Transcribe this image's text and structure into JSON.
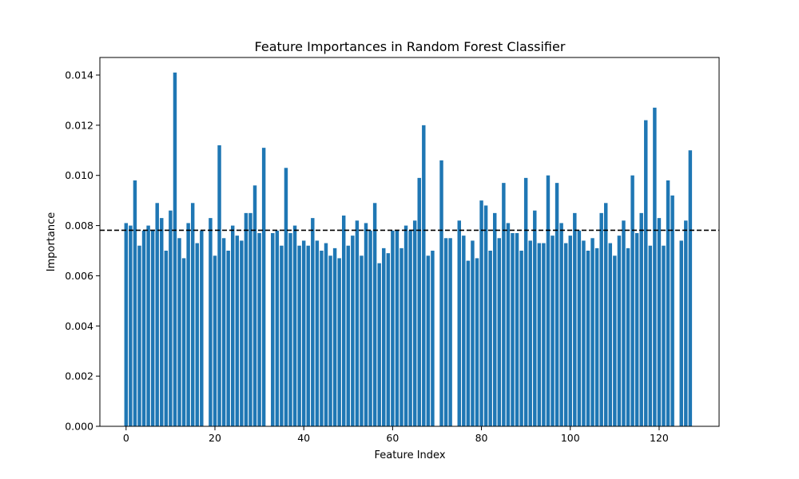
{
  "chart_data": {
    "type": "bar",
    "title": "Feature Importances in Random Forest Classifier",
    "xlabel": "Feature Index",
    "ylabel": "Importance",
    "xlim": [
      -5.9,
      133.5
    ],
    "ylim": [
      0,
      0.0147
    ],
    "xticks": [
      0,
      20,
      40,
      60,
      80,
      100,
      120
    ],
    "xtick_labels": [
      "0",
      "20",
      "40",
      "60",
      "80",
      "100",
      "120"
    ],
    "yticks": [
      0,
      0.002,
      0.004,
      0.006,
      0.008,
      0.01,
      0.012,
      0.014
    ],
    "ytick_labels": [
      "0.000",
      "0.002",
      "0.004",
      "0.006",
      "0.008",
      "0.010",
      "0.012",
      "0.014"
    ],
    "bar_color": "#1f77b4",
    "mean_line": {
      "value": 0.0078125,
      "color": "#000000",
      "style": "dashed"
    },
    "grid": false,
    "categories": [
      0,
      1,
      2,
      3,
      4,
      5,
      6,
      7,
      8,
      9,
      10,
      11,
      12,
      13,
      14,
      15,
      16,
      17,
      18,
      19,
      20,
      21,
      22,
      23,
      24,
      25,
      26,
      27,
      28,
      29,
      30,
      31,
      32,
      33,
      34,
      35,
      36,
      37,
      38,
      39,
      40,
      41,
      42,
      43,
      44,
      45,
      46,
      47,
      48,
      49,
      50,
      51,
      52,
      53,
      54,
      55,
      56,
      57,
      58,
      59,
      60,
      61,
      62,
      63,
      64,
      65,
      66,
      67,
      68,
      69,
      70,
      71,
      72,
      73,
      74,
      75,
      76,
      77,
      78,
      79,
      80,
      81,
      82,
      83,
      84,
      85,
      86,
      87,
      88,
      89,
      90,
      91,
      92,
      93,
      94,
      95,
      96,
      97,
      98,
      99,
      100,
      101,
      102,
      103,
      104,
      105,
      106,
      107,
      108,
      109,
      110,
      111,
      112,
      113,
      114,
      115,
      116,
      117,
      118,
      119,
      120,
      121,
      122,
      123,
      124,
      125,
      126,
      127
    ],
    "values": [
      0.0081,
      0.008,
      0.0098,
      0.0072,
      0.0078,
      0.008,
      0.0078,
      0.0089,
      0.0083,
      0.007,
      0.0086,
      0.0141,
      0.0075,
      0.0067,
      0.0081,
      0.0089,
      0.0073,
      0.0078,
      0.0,
      0.0083,
      0.0068,
      0.0112,
      0.0075,
      0.007,
      0.008,
      0.0076,
      0.0074,
      0.0085,
      0.0085,
      0.0096,
      0.0077,
      0.0111,
      0.0,
      0.0077,
      0.0078,
      0.0072,
      0.0103,
      0.0077,
      0.008,
      0.0072,
      0.0074,
      0.0072,
      0.0083,
      0.0074,
      0.007,
      0.0073,
      0.0068,
      0.0071,
      0.0067,
      0.0084,
      0.0072,
      0.0076,
      0.0082,
      0.0068,
      0.0081,
      0.0078,
      0.0089,
      0.0065,
      0.0071,
      0.0069,
      0.0078,
      0.0078,
      0.0071,
      0.008,
      0.0078,
      0.0082,
      0.0099,
      0.012,
      0.0068,
      0.007,
      0.0,
      0.0106,
      0.0075,
      0.0075,
      0.0,
      0.0082,
      0.0076,
      0.0066,
      0.0074,
      0.0067,
      0.009,
      0.0088,
      0.007,
      0.0085,
      0.0075,
      0.0097,
      0.0081,
      0.0077,
      0.0077,
      0.007,
      0.0099,
      0.0074,
      0.0086,
      0.0073,
      0.0073,
      0.01,
      0.0076,
      0.0097,
      0.0081,
      0.0073,
      0.0076,
      0.0085,
      0.0078,
      0.0074,
      0.007,
      0.0075,
      0.0071,
      0.0085,
      0.0089,
      0.0073,
      0.0068,
      0.0076,
      0.0082,
      0.0071,
      0.01,
      0.0077,
      0.0085,
      0.0122,
      0.0072,
      0.0127,
      0.0083,
      0.0072,
      0.0098,
      0.0092,
      0.0,
      0.0074,
      0.0082,
      0.011
    ]
  }
}
